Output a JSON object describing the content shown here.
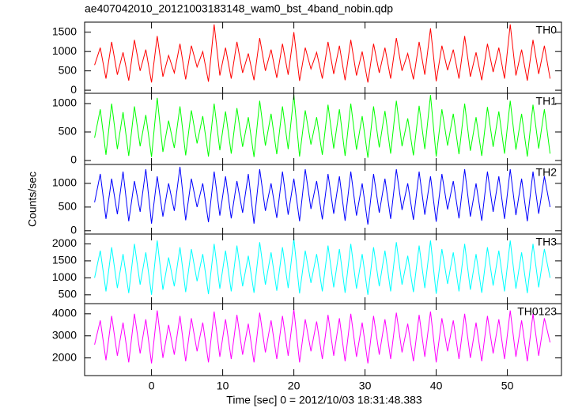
{
  "chart_data": {
    "type": "line",
    "title": "ae407042010_20121003183148_wam0_bst_4band_nobin.qdp",
    "x_label": "Time [sec] 0 = 2012/10/03 18:31:48.383",
    "y_label": "Counts/sec",
    "xlim": [
      -9.4,
      57.6
    ],
    "xticks": [
      0,
      10,
      20,
      30,
      40,
      50
    ],
    "x": [
      -8,
      -7.2,
      -6.4,
      -5.6,
      -4.8,
      -4,
      -3.2,
      -2.4,
      -1.6,
      -0.8,
      0,
      0.8,
      1.6,
      2.4,
      3.2,
      4,
      4.8,
      5.6,
      6.4,
      7.2,
      8,
      8.8,
      9.6,
      10.4,
      11.2,
      12,
      12.8,
      13.6,
      14.4,
      15.2,
      16,
      16.8,
      17.6,
      18.4,
      19.2,
      20,
      20.8,
      21.6,
      22.4,
      23.2,
      24,
      24.8,
      25.6,
      26.4,
      27.2,
      28,
      28.8,
      29.6,
      30.4,
      31.2,
      32,
      32.8,
      33.6,
      34.4,
      35.2,
      36,
      36.8,
      37.6,
      38.4,
      39.2,
      40,
      40.8,
      41.6,
      42.4,
      43.2,
      44,
      44.8,
      45.6,
      46.4,
      47.2,
      48,
      48.8,
      49.6,
      50.4,
      51.2,
      52,
      52.8,
      53.6,
      54.4,
      55.2,
      56
    ],
    "series": [
      {
        "name": "TH0",
        "color": "#ff0000",
        "ylim": [
          -80,
          1760
        ],
        "yticks": [
          0,
          500,
          1000,
          1500
        ],
        "values": [
          650,
          1100,
          300,
          1250,
          400,
          980,
          250,
          1300,
          500,
          1050,
          200,
          1400,
          350,
          900,
          450,
          1200,
          280,
          1150,
          600,
          1000,
          220,
          1700,
          380,
          1100,
          300,
          1250,
          450,
          950,
          260,
          1350,
          500,
          1050,
          320,
          1200,
          400,
          1500,
          240,
          1100,
          550,
          980,
          300,
          1250,
          420,
          1150,
          260,
          1300,
          380,
          1000,
          200,
          1200,
          450,
          1100,
          300,
          1350,
          500,
          950,
          280,
          1250,
          400,
          1600,
          230,
          1150,
          520,
          1050,
          300,
          1400,
          350,
          980,
          260,
          1200,
          470,
          1100,
          300,
          1700,
          380,
          1050,
          250,
          1300,
          420,
          1150,
          300
        ]
      },
      {
        "name": "TH1",
        "color": "#00ff00",
        "ylim": [
          -70,
          1180
        ],
        "yticks": [
          0,
          500,
          1000
        ],
        "values": [
          400,
          900,
          100,
          1000,
          200,
          850,
          80,
          950,
          250,
          800,
          60,
          1100,
          150,
          700,
          220,
          950,
          90,
          880,
          300,
          780,
          70,
          1000,
          180,
          860,
          120,
          920,
          240,
          760,
          60,
          1050,
          260,
          820,
          110,
          950,
          200,
          1150,
          70,
          880,
          280,
          760,
          100,
          980,
          210,
          900,
          80,
          1000,
          190,
          780,
          50,
          950,
          230,
          870,
          120,
          1050,
          250,
          740,
          90,
          960,
          200,
          1150,
          70,
          900,
          260,
          820,
          110,
          1000,
          170,
          760,
          80,
          940,
          240,
          860,
          120,
          1050,
          190,
          820,
          70,
          980,
          210,
          900,
          120
        ]
      },
      {
        "name": "TH2",
        "color": "#0000ff",
        "ylim": [
          -70,
          1400
        ],
        "yticks": [
          0,
          500,
          1000
        ],
        "values": [
          600,
          1200,
          250,
          1100,
          350,
          1250,
          200,
          1050,
          400,
          1300,
          150,
          1150,
          300,
          1000,
          420,
          1350,
          220,
          1100,
          500,
          1000,
          180,
          1250,
          320,
          1150,
          260,
          1050,
          380,
          1200,
          150,
          1300,
          420,
          1000,
          270,
          1250,
          340,
          1100,
          200,
          1300,
          460,
          1050,
          240,
          1200,
          360,
          1150,
          210,
          1250,
          320,
          1000,
          130,
          1200,
          380,
          1100,
          250,
          1300,
          440,
          1000,
          230,
          1250,
          340,
          1150,
          190,
          1200,
          450,
          1050,
          260,
          1300,
          300,
          1000,
          210,
          1250,
          400,
          1150,
          250,
          1300,
          330,
          1100,
          200,
          1250,
          360,
          1150,
          500
        ]
      },
      {
        "name": "TH3",
        "color": "#00ffff",
        "ylim": [
          240,
          2290
        ],
        "yticks": [
          500,
          1000,
          1500,
          2000
        ],
        "values": [
          1000,
          1800,
          600,
          1900,
          700,
          1700,
          550,
          2000,
          800,
          1750,
          500,
          2100,
          650,
          1600,
          750,
          1900,
          580,
          1850,
          900,
          1700,
          520,
          2000,
          680,
          1800,
          600,
          1950,
          750,
          1650,
          560,
          2050,
          800,
          1750,
          620,
          1900,
          700,
          2150,
          540,
          1800,
          850,
          1700,
          600,
          1950,
          720,
          1850,
          560,
          2000,
          680,
          1700,
          500,
          1900,
          750,
          1800,
          600,
          2050,
          800,
          1650,
          580,
          1950,
          700,
          2100,
          530,
          1850,
          820,
          1750,
          600,
          2000,
          650,
          1700,
          560,
          1900,
          770,
          1800,
          600,
          2100,
          680,
          1750,
          550,
          2000,
          720,
          1850,
          1000
        ]
      },
      {
        "name": "TH0123",
        "color": "#ff00ff",
        "ylim": [
          1200,
          4460
        ],
        "yticks": [
          2000,
          3000,
          4000
        ],
        "values": [
          2600,
          3700,
          1900,
          3900,
          2100,
          3600,
          1800,
          4000,
          2200,
          3750,
          1750,
          4150,
          2000,
          3500,
          2150,
          3900,
          1850,
          3800,
          2300,
          3600,
          1800,
          4100,
          2050,
          3750,
          1950,
          3950,
          2150,
          3550,
          1800,
          4050,
          2250,
          3700,
          1950,
          3900,
          2100,
          4200,
          1800,
          3750,
          2300,
          3650,
          1950,
          3950,
          2100,
          3800,
          1850,
          4000,
          2050,
          3600,
          1750,
          3900,
          2150,
          3750,
          1950,
          4050,
          2250,
          3550,
          1850,
          3950,
          2050,
          4100,
          1800,
          3800,
          2300,
          3700,
          1950,
          4000,
          2000,
          3600,
          1850,
          3900,
          2200,
          3750,
          1950,
          4150,
          2050,
          3700,
          1850,
          4000,
          2100,
          3800,
          2700
        ]
      }
    ]
  }
}
